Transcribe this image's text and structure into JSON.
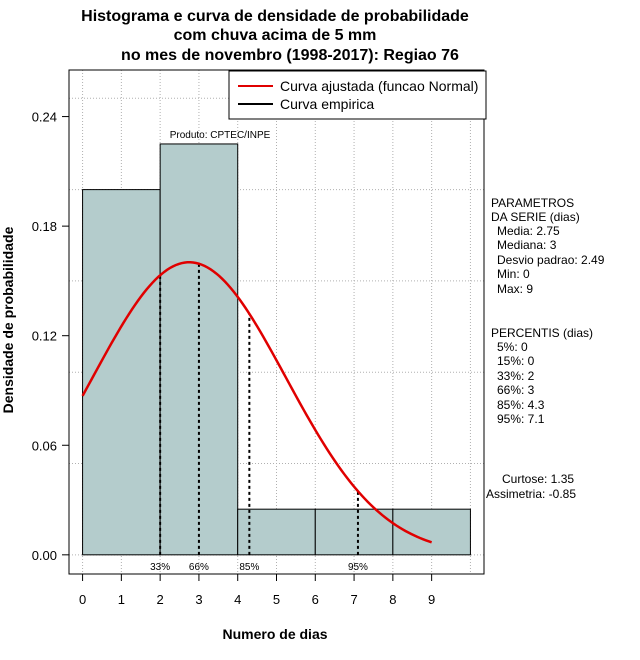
{
  "chart_data": {
    "type": "bar",
    "title_lines": [
      "Histograma e curva de densidade de probabilidade",
      "com chuva acima de 5 mm",
      "no mes de novembro (1998-2017): Regiao 76"
    ],
    "xlabel": "Numero de dias",
    "ylabel": "Densidade de probabilidade",
    "xlim": [
      -0.35,
      10.35
    ],
    "ylim": [
      -0.0105,
      0.2655
    ],
    "x_ticks": [
      0,
      1,
      2,
      3,
      4,
      5,
      6,
      7,
      8,
      9
    ],
    "y_ticks": [
      {
        "value": 0.0,
        "label": "0.00"
      },
      {
        "value": 0.06,
        "label": "0.06"
      },
      {
        "value": 0.12,
        "label": "0.12"
      },
      {
        "value": 0.18,
        "label": "0.18"
      },
      {
        "value": 0.24,
        "label": "0.24"
      }
    ],
    "histogram": [
      {
        "x0": 0,
        "x1": 2,
        "density": 0.2
      },
      {
        "x0": 2,
        "x1": 4,
        "density": 0.225
      },
      {
        "x0": 4,
        "x1": 6,
        "density": 0.025
      },
      {
        "x0": 6,
        "x1": 8,
        "density": 0.025
      },
      {
        "x0": 8,
        "x1": 10,
        "density": 0.025
      }
    ],
    "normal_fit": {
      "mean": 2.75,
      "sd": 2.49,
      "x_from": 0,
      "x_to": 9,
      "color": "#e00000"
    },
    "percentile_markers": [
      {
        "x": 2,
        "label": "33%"
      },
      {
        "x": 3,
        "label": "66%"
      },
      {
        "x": 4.3,
        "label": "85%"
      },
      {
        "x": 7.1,
        "label": "95%"
      }
    ],
    "product_label": "Produto: CPTEC/INPE",
    "legend": [
      {
        "label": "Curva ajustada (funcao Normal)",
        "color": "#e00000"
      },
      {
        "label": "Curva empirica",
        "color": "#000000"
      }
    ],
    "parameters": [
      "PARAMETROS",
      "DA SERIE (dias)",
      "Media: 2.75",
      "Mediana: 3",
      "Desvio padrao: 2.49",
      "Min: 0",
      "Max: 9"
    ],
    "percentiles": [
      "PERCENTIS (dias)",
      "5%: 0",
      "15%: 0",
      "33%: 2",
      "66%: 3",
      "85%: 4.3",
      "95%: 7.1"
    ],
    "shape_stats": [
      "Curtose: 1.35",
      "Assimetria: -0.85"
    ],
    "colors": {
      "bar_fill": "#b4cccc",
      "grid": "#b0b0b0",
      "curve": "#e00000"
    }
  }
}
